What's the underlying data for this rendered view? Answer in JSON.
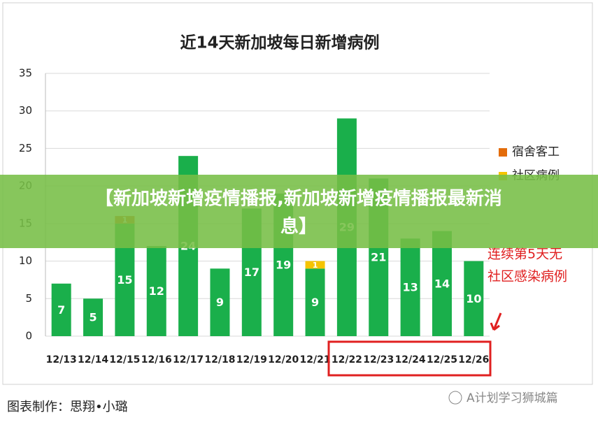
{
  "chart_data": {
    "type": "stacked-bar",
    "title": "近14天新加坡每日新增病例",
    "categories": [
      "12/13",
      "12/14",
      "12/15",
      "12/16",
      "12/17",
      "12/18",
      "12/19",
      "12/20",
      "12/21",
      "12/22",
      "12/23",
      "12/24",
      "12/25",
      "12/26"
    ],
    "series": [
      {
        "color": "#1aaf4b",
        "values": [
          7,
          5,
          15,
          12,
          24,
          9,
          17,
          19,
          9,
          29,
          21,
          13,
          14,
          10
        ]
      },
      {
        "name": "宿舍客工",
        "color": "#e36c0a",
        "values": [
          null,
          null,
          1,
          null,
          null,
          null,
          null,
          null,
          null,
          null,
          null,
          null,
          null,
          null
        ]
      },
      {
        "name": "社区病例",
        "color": "#f5c400",
        "values": [
          null,
          null,
          null,
          null,
          null,
          null,
          null,
          null,
          1,
          null,
          null,
          null,
          null,
          null
        ]
      }
    ],
    "ylim": [
      0,
      35
    ],
    "yticks": [
      0,
      5,
      10,
      15,
      20,
      25,
      30,
      35
    ],
    "grid": true,
    "annotation": [
      "连续第5天无",
      "社区感染病例"
    ]
  },
  "banner": [
    "【新加坡新增疫情播报,新加坡新增疫情播报最新消",
    "息】"
  ],
  "footer": "图表制作：思翔•小璐",
  "watermark": "A计划学习狮城篇"
}
